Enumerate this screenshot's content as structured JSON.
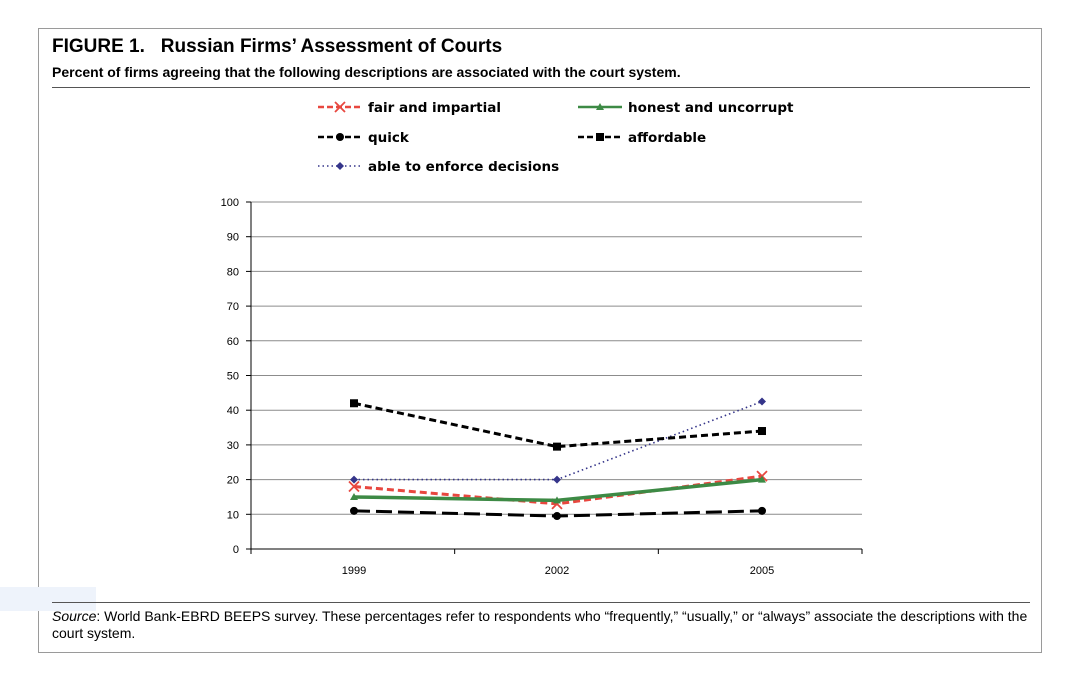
{
  "figure": {
    "label": "FIGURE 1.",
    "title": "Russian Firms’ Assessment of Courts",
    "subtitle": "Percent of firms agreeing that the following descriptions are associated with the court system.",
    "source_label": "Source",
    "source_text": ": World Bank-EBRD BEEPS survey. These percentages refer to respondents who “frequently,” “usually,” or “always” associate the descriptions with the court system."
  },
  "chart_data": {
    "type": "line",
    "title": "",
    "xlabel": "",
    "ylabel": "",
    "categories": [
      "1999",
      "2002",
      "2005"
    ],
    "ylim": [
      0,
      100
    ],
    "yticks": [
      0,
      10,
      20,
      30,
      40,
      50,
      60,
      70,
      80,
      90,
      100
    ],
    "grid": "horizontal",
    "legend_position": "top",
    "series": [
      {
        "name": "fair and impartial",
        "values": [
          18,
          13,
          21
        ],
        "color": "#e8473f",
        "dash": "dashed",
        "marker": "x"
      },
      {
        "name": "honest and uncorrupt",
        "values": [
          15,
          14,
          20
        ],
        "color": "#3d8a45",
        "dash": "solid",
        "marker": "triangle"
      },
      {
        "name": "quick",
        "values": [
          11,
          9.5,
          11
        ],
        "color": "#000000",
        "dash": "longdash",
        "marker": "circle"
      },
      {
        "name": "affordable",
        "values": [
          42,
          29.5,
          34
        ],
        "color": "#000000",
        "dash": "dashed",
        "marker": "square"
      },
      {
        "name": "able to enforce decisions",
        "values": [
          20,
          20,
          42.5
        ],
        "color": "#35358a",
        "dash": "dotted",
        "marker": "diamond"
      }
    ]
  }
}
